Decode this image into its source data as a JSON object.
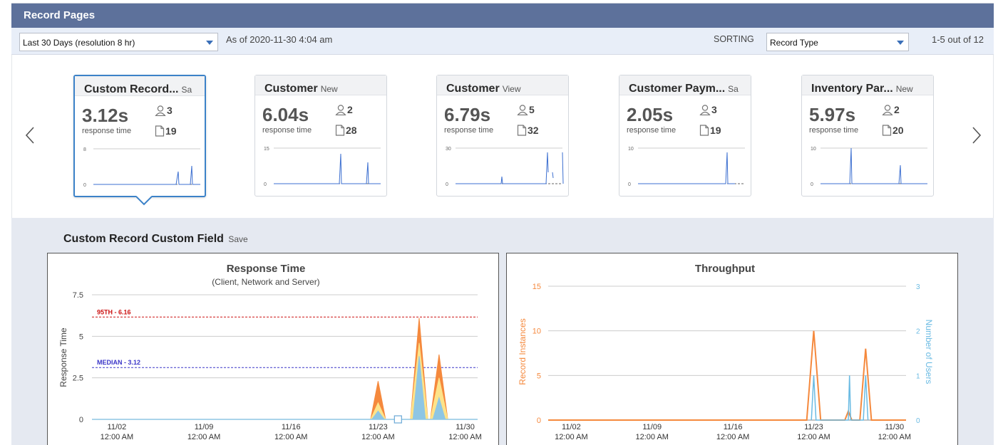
{
  "header": {
    "title": "Record Pages"
  },
  "filters": {
    "range_value": "Last 30 Days (resolution 8 hr)",
    "as_of": "As of 2020-11-30 4:04 am",
    "sorting_label": "SORTING",
    "sorting_value": "Record Type",
    "pagination": "1-5 out of 12"
  },
  "cards": [
    {
      "name": "Custom Record...",
      "action": "Sa",
      "rt": "3.12s",
      "rt_label": "response time",
      "users": "3",
      "pages": "19",
      "ymax": "8",
      "ymin": "0",
      "active": true
    },
    {
      "name": "Customer",
      "action": "New",
      "rt": "6.04s",
      "rt_label": "response time",
      "users": "2",
      "pages": "28",
      "ymax": "15",
      "ymin": "0",
      "active": false
    },
    {
      "name": "Customer",
      "action": "View",
      "rt": "6.79s",
      "rt_label": "response time",
      "users": "5",
      "pages": "32",
      "ymax": "30",
      "ymin": "0",
      "active": false
    },
    {
      "name": "Customer Paym...",
      "action": "Sa",
      "rt": "2.05s",
      "rt_label": "response time",
      "users": "3",
      "pages": "19",
      "ymax": "10",
      "ymin": "0",
      "active": false
    },
    {
      "name": "Inventory Par...",
      "action": "New",
      "rt": "5.97s",
      "rt_label": "response time",
      "users": "2",
      "pages": "20",
      "ymax": "10",
      "ymin": "0",
      "active": false
    }
  ],
  "detail": {
    "title": "Custom Record Custom Field",
    "action": "Save"
  },
  "chart_data": [
    {
      "type": "area",
      "title": "Response Time",
      "subtitle": "(Client, Network and Server)",
      "ylabel": "Response Time",
      "ylim": [
        0,
        7.5
      ],
      "yticks": [
        "0",
        "2.5",
        "5",
        "7.5"
      ],
      "xticks": [
        {
          "day": 2,
          "date": "11/02",
          "time": "12:00 AM"
        },
        {
          "day": 9,
          "date": "11/09",
          "time": "12:00 AM"
        },
        {
          "day": 16,
          "date": "11/16",
          "time": "12:00 AM"
        },
        {
          "day": 23,
          "date": "11/23",
          "time": "12:00 AM"
        },
        {
          "day": 30,
          "date": "11/30",
          "time": "12:00 AM"
        }
      ],
      "xrange": [
        0,
        31
      ],
      "reference_lines": [
        {
          "label": "95TH - 6.16",
          "value": 6.16,
          "color": "#cc1111"
        },
        {
          "label": "MEDIAN - 3.12",
          "value": 3.12,
          "color": "#3a35c8"
        }
      ],
      "series": [
        {
          "color": "#f5893d",
          "values": [
            [
              22.4,
              0
            ],
            [
              23,
              2.3
            ],
            [
              23.6,
              0
            ],
            [
              25.6,
              0
            ],
            [
              26.3,
              6.1
            ],
            [
              27,
              0
            ],
            [
              27.2,
              0
            ],
            [
              27.9,
              3.9
            ],
            [
              28.6,
              0
            ]
          ]
        },
        {
          "color": "#fde38a",
          "values": [
            [
              22.4,
              0
            ],
            [
              23,
              1.0
            ],
            [
              23.6,
              0
            ],
            [
              25.6,
              0
            ],
            [
              26.3,
              4.6
            ],
            [
              27,
              0
            ],
            [
              27.2,
              0
            ],
            [
              27.9,
              2.5
            ],
            [
              28.6,
              0
            ]
          ]
        },
        {
          "color": "#8ec6e4",
          "values": [
            [
              22.5,
              0
            ],
            [
              23,
              0.5
            ],
            [
              23.5,
              0
            ],
            [
              25.8,
              0
            ],
            [
              26.3,
              3.8
            ],
            [
              26.8,
              0
            ],
            [
              27.4,
              0
            ],
            [
              27.9,
              1.3
            ],
            [
              28.4,
              0
            ]
          ]
        }
      ]
    },
    {
      "type": "line",
      "title": "Throughput",
      "ylabel_left": "Record Instances",
      "ylabel_right": "Number of Users",
      "ylim_left": [
        0,
        15
      ],
      "ylim_right": [
        0,
        3
      ],
      "yticks_left": [
        "0",
        "5",
        "10",
        "15"
      ],
      "yticks_right": [
        "0",
        "1",
        "2",
        "3"
      ],
      "xticks": [
        {
          "day": 2,
          "date": "11/02",
          "time": "12:00 AM"
        },
        {
          "day": 9,
          "date": "11/09",
          "time": "12:00 AM"
        },
        {
          "day": 16,
          "date": "11/16",
          "time": "12:00 AM"
        },
        {
          "day": 23,
          "date": "11/23",
          "time": "12:00 AM"
        },
        {
          "day": 30,
          "date": "11/30",
          "time": "12:00 AM"
        }
      ],
      "xrange": [
        0,
        31
      ],
      "series": [
        {
          "axis": "left",
          "color": "#f5893d",
          "values": [
            [
              0,
              0
            ],
            [
              22.4,
              0
            ],
            [
              23,
              10
            ],
            [
              23.6,
              0
            ],
            [
              25.7,
              0
            ],
            [
              26,
              1
            ],
            [
              26.3,
              0
            ],
            [
              27,
              0
            ],
            [
              27.5,
              8
            ],
            [
              28,
              0
            ],
            [
              31,
              0
            ]
          ]
        },
        {
          "axis": "right",
          "color": "#6bbbe3",
          "values": [
            [
              22.8,
              0
            ],
            [
              23,
              1
            ],
            [
              23.2,
              0
            ],
            [
              26,
              0
            ],
            [
              26.1,
              1
            ],
            [
              26.2,
              0
            ],
            [
              27.3,
              0
            ],
            [
              27.5,
              1
            ],
            [
              27.7,
              0
            ]
          ]
        }
      ]
    }
  ]
}
